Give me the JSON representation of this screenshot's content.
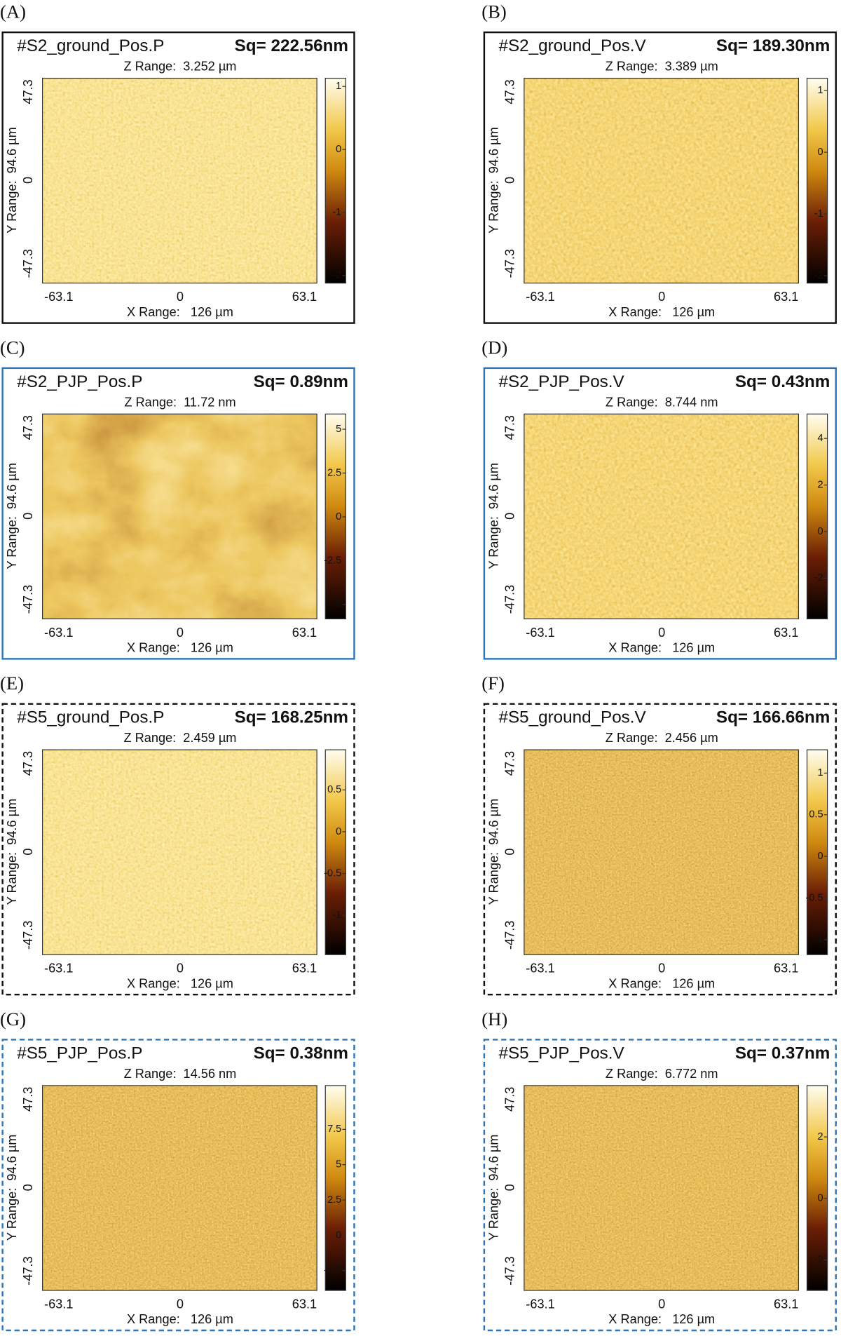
{
  "panels": [
    {
      "label": "(A)",
      "title": "#S2_ground_Pos.P",
      "sq": "Sq= 222.56nm",
      "z_range": "Z Range:  3.252 µm",
      "colorbar": {
        "lim": [
          -2.12,
          1.13
        ],
        "ticks": [
          1,
          0,
          -1,
          -2
        ]
      }
    },
    {
      "label": "(B)",
      "title": "#S2_ground_Pos.V",
      "sq": "Sq= 189.30nm",
      "z_range": "Z Range:  3.389 µm",
      "colorbar": {
        "lim": [
          -2.12,
          1.2
        ],
        "ticks": [
          1,
          0,
          -1,
          -2
        ]
      }
    },
    {
      "label": "(C)",
      "title": "#S2_PJP_Pos.P",
      "sq": "Sq= 0.89nm",
      "z_range": "Z Range:  11.72 nm",
      "colorbar": {
        "lim": [
          -5.82,
          5.87
        ],
        "ticks": [
          5,
          2.5,
          0,
          -2.5,
          -5
        ]
      }
    },
    {
      "label": "(D)",
      "title": "#S2_PJP_Pos.V",
      "sq": "Sq= 0.43nm",
      "z_range": "Z Range:  8.744 nm",
      "colorbar": {
        "lim": [
          -3.75,
          5.05
        ],
        "ticks": [
          4,
          2,
          0,
          -2
        ]
      }
    },
    {
      "label": "(E)",
      "title": "#S5_ground_Pos.P",
      "sq": "Sq= 168.25nm",
      "z_range": "Z Range:  2.459 µm",
      "colorbar": {
        "lim": [
          -1.47,
          0.98
        ],
        "ticks": [
          0.5,
          0,
          -0.5,
          -1
        ]
      }
    },
    {
      "label": "(F)",
      "title": "#S5_ground_Pos.V",
      "sq": "Sq= 166.66nm",
      "z_range": "Z Range:  2.456 µm",
      "colorbar": {
        "lim": [
          -1.18,
          1.28
        ],
        "ticks": [
          1,
          0.5,
          0,
          -0.5,
          -1
        ]
      }
    },
    {
      "label": "(G)",
      "title": "#S5_PJP_Pos.P",
      "sq": "Sq= 0.38nm",
      "z_range": "Z Range:  14.56 nm",
      "colorbar": {
        "lim": [
          -3.9,
          10.6
        ],
        "ticks": [
          7.5,
          5,
          2.5,
          0,
          -2.5
        ]
      }
    },
    {
      "label": "(H)",
      "title": "#S5_PJP_Pos.V",
      "sq": "Sq= 0.37nm",
      "z_range": "Z Range:  6.772 nm",
      "colorbar": {
        "lim": [
          -2.99,
          3.67
        ],
        "ticks": [
          2,
          0,
          -2
        ]
      }
    }
  ],
  "axes": {
    "y_label": "Y Range:  94.6 µm",
    "x_label": "X Range:   126 µm",
    "xticks": [
      "-63.1",
      "0",
      "63.1"
    ],
    "yticks": [
      "47.3",
      "0",
      "-47.3"
    ]
  }
}
